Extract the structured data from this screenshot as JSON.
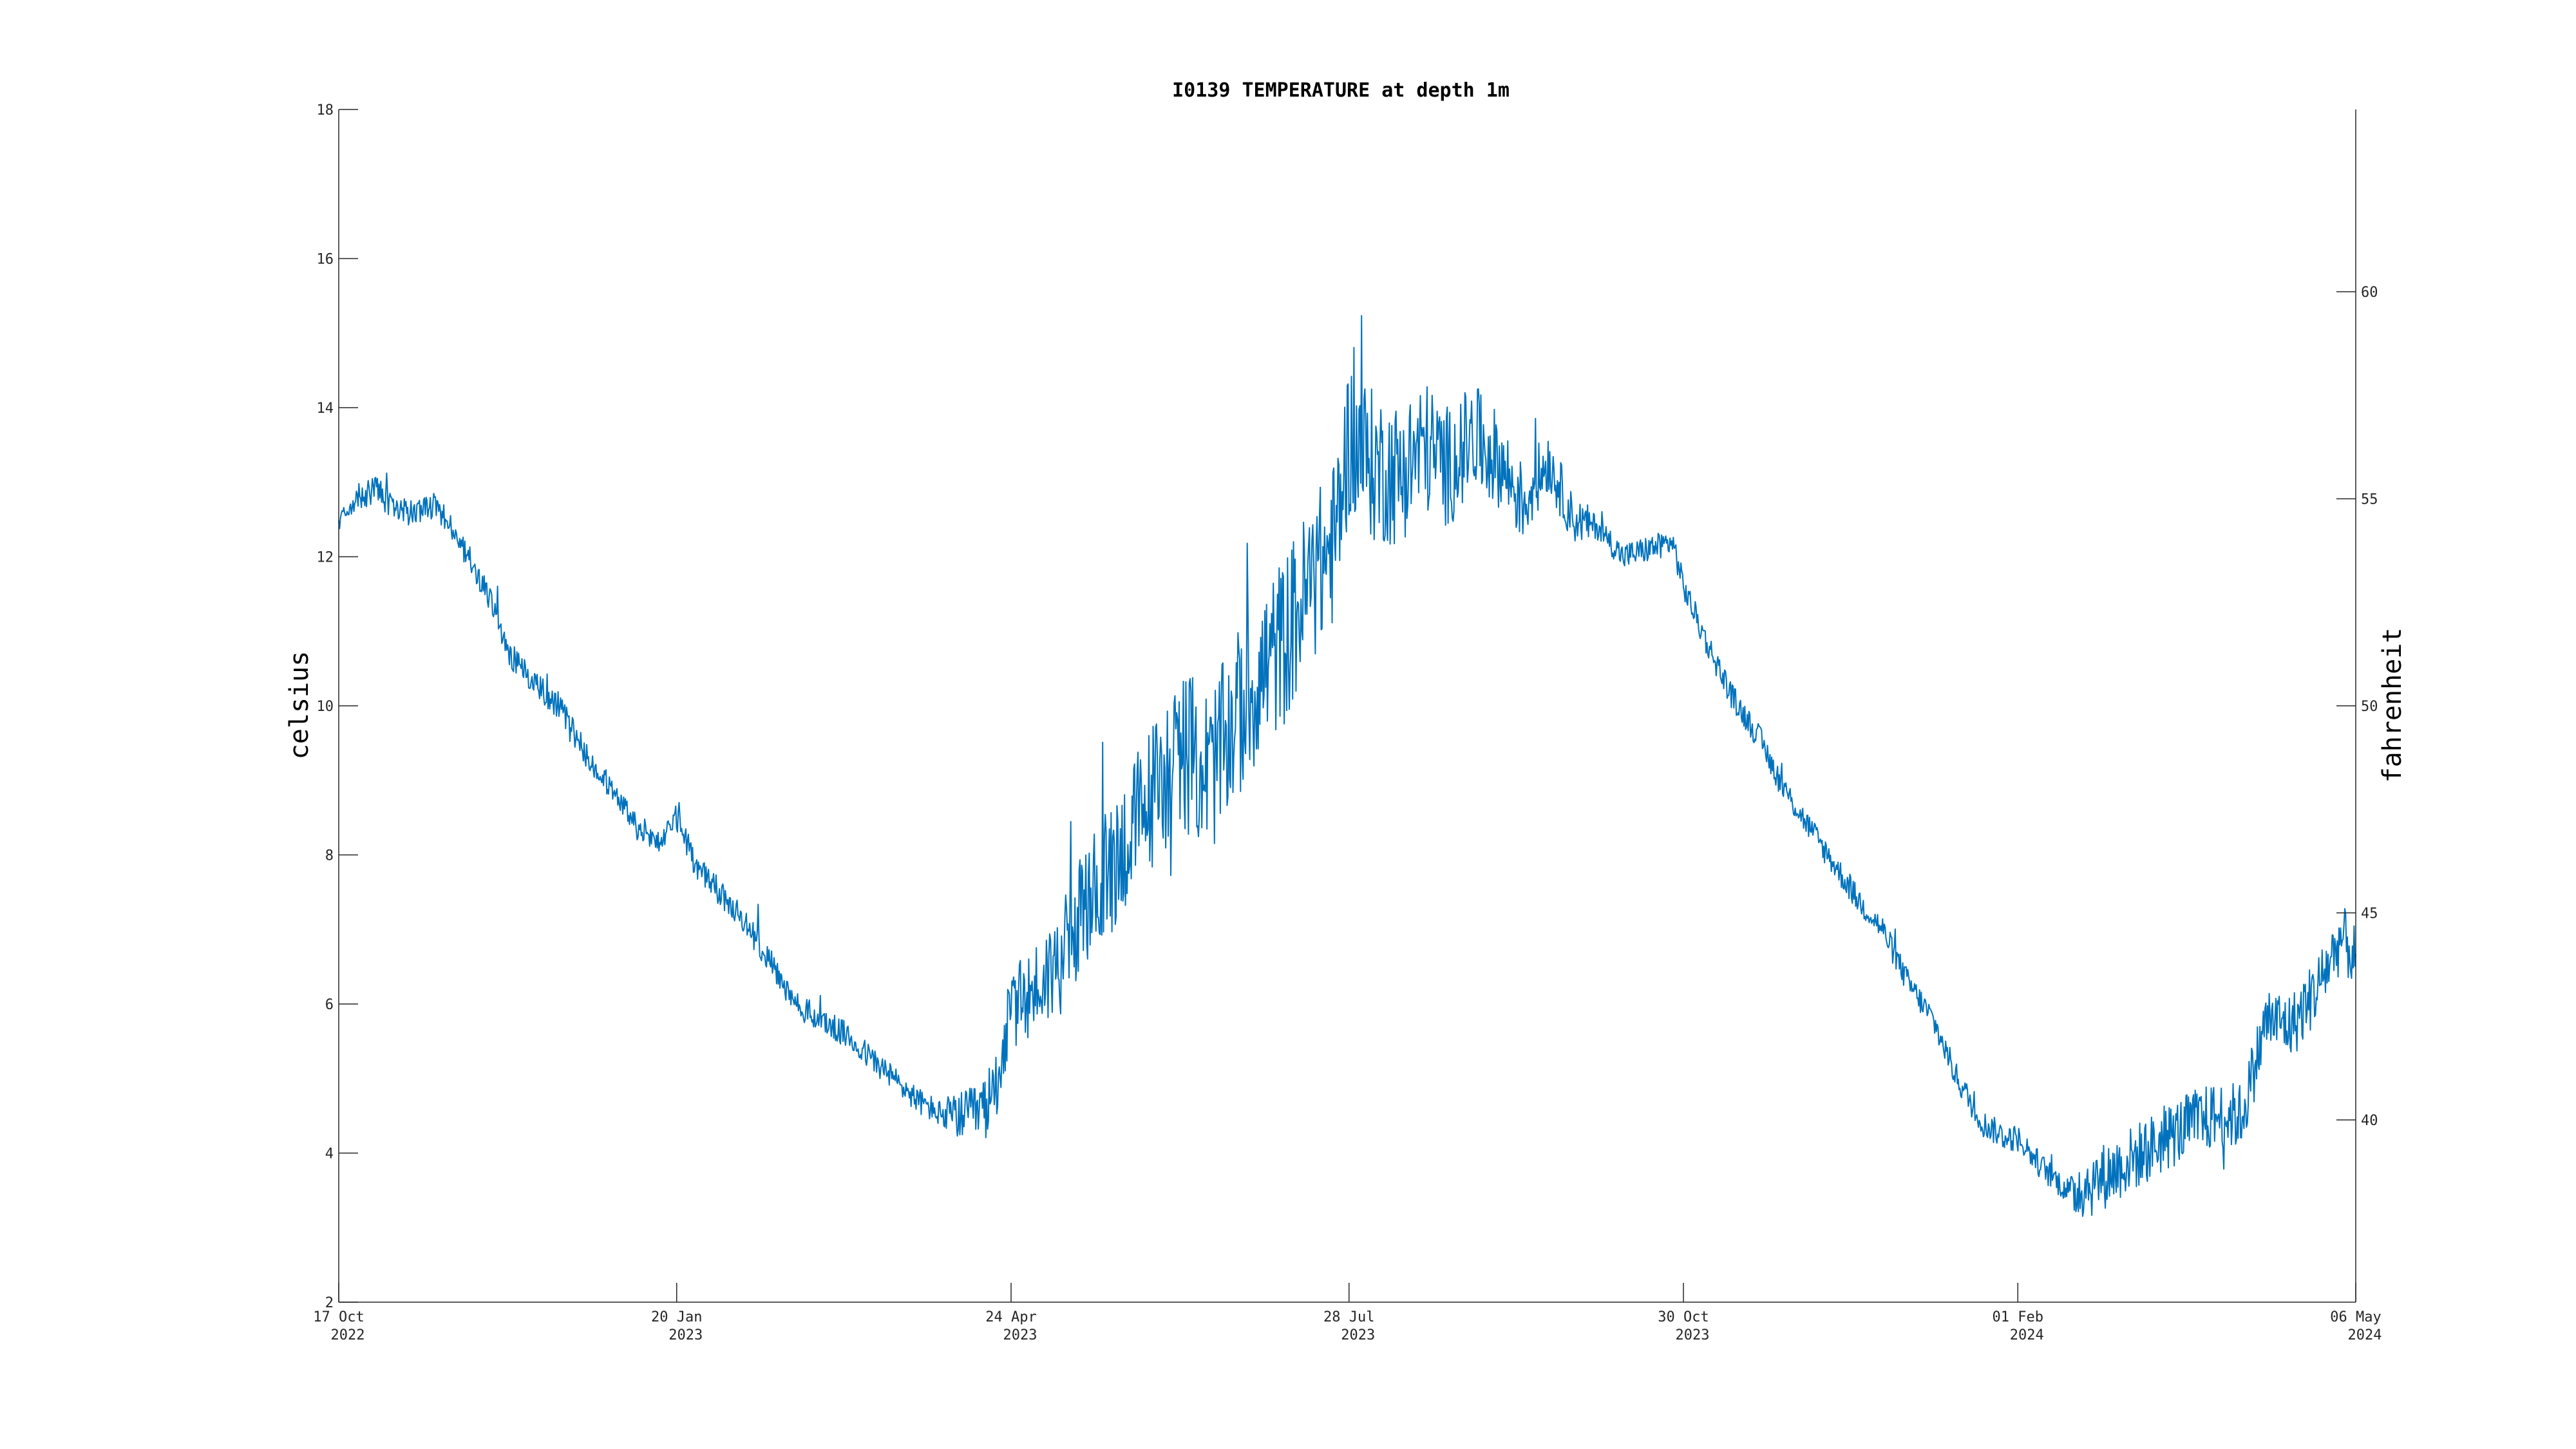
{
  "chart_data": {
    "type": "line",
    "title": "I0139 TEMPERATURE at depth 1m",
    "ylabel_left": "celsius",
    "ylabel_right": "fahrenheit",
    "x_start": "2022-10-17",
    "x_end": "2024-05-06",
    "ylim": [
      2,
      18
    ],
    "ylim_right": [
      35.6,
      64.4
    ],
    "y_ticks": [
      "2",
      "4",
      "6",
      "8",
      "10",
      "12",
      "14",
      "16",
      "18"
    ],
    "y_ticks_right": [
      "40",
      "45",
      "50",
      "55",
      "60"
    ],
    "x_ticks": [
      {
        "date": "2022-10-17",
        "day": "17 Oct",
        "year": "2022"
      },
      {
        "date": "2023-01-20",
        "day": "20 Jan",
        "year": "2023"
      },
      {
        "date": "2023-04-24",
        "day": "24 Apr",
        "year": "2023"
      },
      {
        "date": "2023-07-28",
        "day": "28 Jul",
        "year": "2023"
      },
      {
        "date": "2023-10-30",
        "day": "30 Oct",
        "year": "2023"
      },
      {
        "date": "2024-02-01",
        "day": "01 Feb",
        "year": "2024"
      },
      {
        "date": "2024-05-06",
        "day": "06 May",
        "year": "2024"
      }
    ],
    "series": [
      {
        "color": "#0072BD",
        "noise_note_values_are_smoothed_trend": true,
        "points": [
          [
            "2022-10-17",
            12.5
          ],
          [
            "2022-10-22",
            12.8
          ],
          [
            "2022-10-28",
            12.9
          ],
          [
            "2022-11-02",
            12.6
          ],
          [
            "2022-11-08",
            12.6
          ],
          [
            "2022-11-13",
            12.7
          ],
          [
            "2022-11-20",
            12.2
          ],
          [
            "2022-11-27",
            11.6
          ],
          [
            "2022-12-04",
            10.7
          ],
          [
            "2022-12-11",
            10.3
          ],
          [
            "2022-12-18",
            10.0
          ],
          [
            "2022-12-25",
            9.4
          ],
          [
            "2023-01-01",
            8.9
          ],
          [
            "2023-01-08",
            8.4
          ],
          [
            "2023-01-15",
            8.2
          ],
          [
            "2023-01-20",
            8.5
          ],
          [
            "2023-01-25",
            7.9
          ],
          [
            "2023-02-01",
            7.5
          ],
          [
            "2023-02-08",
            7.1
          ],
          [
            "2023-02-15",
            6.6
          ],
          [
            "2023-02-22",
            6.0
          ],
          [
            "2023-03-01",
            5.8
          ],
          [
            "2023-03-08",
            5.6
          ],
          [
            "2023-03-15",
            5.3
          ],
          [
            "2023-03-22",
            5.0
          ],
          [
            "2023-03-29",
            4.7
          ],
          [
            "2023-04-05",
            4.5
          ],
          [
            "2023-04-12",
            4.5
          ],
          [
            "2023-04-17",
            4.6
          ],
          [
            "2023-04-20",
            5.0
          ],
          [
            "2023-04-24",
            5.9
          ],
          [
            "2023-05-01",
            6.2
          ],
          [
            "2023-05-08",
            6.6
          ],
          [
            "2023-05-15",
            7.3
          ],
          [
            "2023-05-22",
            7.8
          ],
          [
            "2023-05-29",
            8.4
          ],
          [
            "2023-06-05",
            9.0
          ],
          [
            "2023-06-12",
            9.4
          ],
          [
            "2023-06-19",
            9.1
          ],
          [
            "2023-06-26",
            9.8
          ],
          [
            "2023-07-03",
            10.4
          ],
          [
            "2023-07-10",
            10.9
          ],
          [
            "2023-07-17",
            11.6
          ],
          [
            "2023-07-24",
            12.2
          ],
          [
            "2023-07-28",
            13.6
          ],
          [
            "2023-08-04",
            13.2
          ],
          [
            "2023-08-11",
            13.1
          ],
          [
            "2023-08-18",
            13.5
          ],
          [
            "2023-08-25",
            13.2
          ],
          [
            "2023-09-01",
            13.6
          ],
          [
            "2023-09-08",
            13.3
          ],
          [
            "2023-09-15",
            12.7
          ],
          [
            "2023-09-22",
            13.3
          ],
          [
            "2023-09-29",
            12.5
          ],
          [
            "2023-10-06",
            12.4
          ],
          [
            "2023-10-13",
            12.0
          ],
          [
            "2023-10-20",
            12.1
          ],
          [
            "2023-10-27",
            12.2
          ],
          [
            "2023-10-30",
            11.6
          ],
          [
            "2023-11-06",
            10.8
          ],
          [
            "2023-11-13",
            10.1
          ],
          [
            "2023-11-20",
            9.6
          ],
          [
            "2023-11-27",
            8.9
          ],
          [
            "2023-12-04",
            8.4
          ],
          [
            "2023-12-11",
            7.9
          ],
          [
            "2023-12-18",
            7.4
          ],
          [
            "2023-12-25",
            7.0
          ],
          [
            "2024-01-01",
            6.3
          ],
          [
            "2024-01-08",
            5.8
          ],
          [
            "2024-01-15",
            5.0
          ],
          [
            "2024-01-22",
            4.4
          ],
          [
            "2024-01-29",
            4.2
          ],
          [
            "2024-02-01",
            4.2
          ],
          [
            "2024-02-08",
            3.8
          ],
          [
            "2024-02-15",
            3.5
          ],
          [
            "2024-02-22",
            3.6
          ],
          [
            "2024-02-29",
            3.8
          ],
          [
            "2024-03-07",
            4.0
          ],
          [
            "2024-03-14",
            4.2
          ],
          [
            "2024-03-21",
            4.4
          ],
          [
            "2024-03-28",
            4.5
          ],
          [
            "2024-04-04",
            4.5
          ],
          [
            "2024-04-11",
            5.8
          ],
          [
            "2024-04-18",
            5.7
          ],
          [
            "2024-04-25",
            6.2
          ],
          [
            "2024-05-02",
            6.9
          ],
          [
            "2024-05-06",
            6.6
          ]
        ]
      }
    ]
  }
}
